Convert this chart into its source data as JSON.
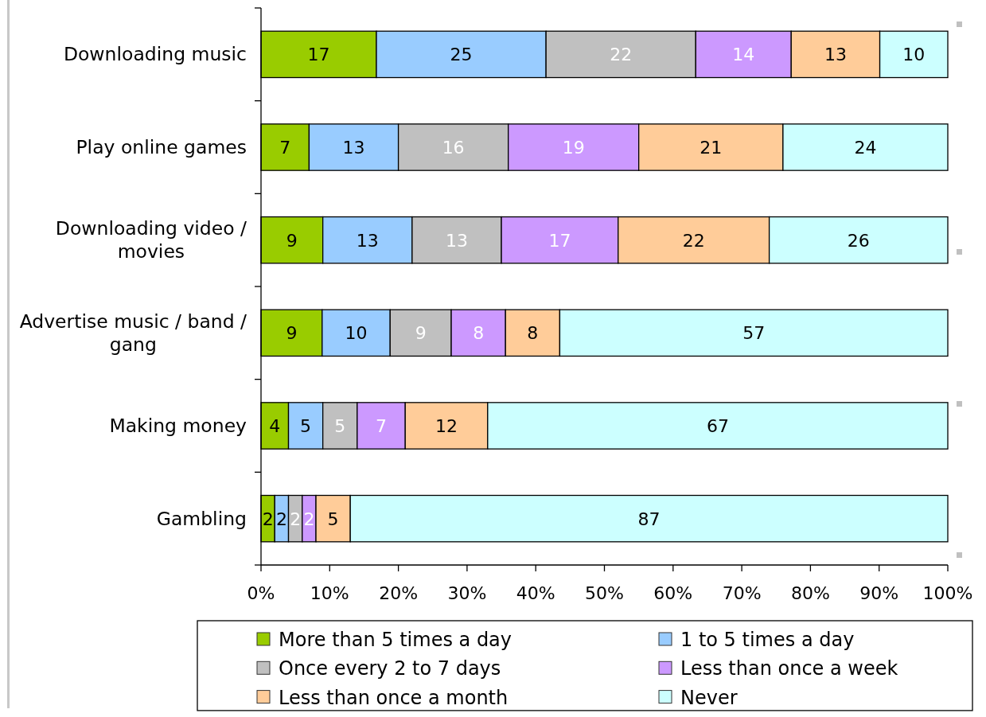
{
  "chart_data": {
    "type": "bar",
    "orientation": "horizontal",
    "stacked": true,
    "categories": [
      "Downloading music",
      "Play online games",
      "Downloading video / movies",
      "Advertise music / band / gang",
      "Making money",
      "Gambling"
    ],
    "series": [
      {
        "name": "More than 5 times a day",
        "color": "#99cc00",
        "values": [
          16.8,
          7,
          9,
          8.9,
          4,
          2
        ],
        "value_labels": [
          "17",
          "7",
          "9",
          "9",
          "4",
          "2"
        ]
      },
      {
        "name": "1 to 5 times a day",
        "color": "#99ccff",
        "values": [
          24.7,
          13,
          13,
          9.9,
          5,
          2
        ],
        "value_labels": [
          "25",
          "13",
          "13",
          "10",
          "5",
          "2"
        ]
      },
      {
        "name": "Once every 2 to 7 days",
        "color": "#c0c0c0",
        "values": [
          21.8,
          16,
          13,
          8.9,
          5,
          2
        ],
        "value_labels": [
          "22",
          "16",
          "13",
          "9",
          "5",
          "2"
        ]
      },
      {
        "name": "Less than once a week",
        "color": "#cc99ff",
        "values": [
          13.9,
          19,
          17,
          7.9,
          7,
          2
        ],
        "value_labels": [
          "14",
          "19",
          "17",
          "8",
          "7",
          "2"
        ]
      },
      {
        "name": "Less than once a month",
        "color": "#ffcc99",
        "values": [
          12.9,
          21,
          22,
          7.9,
          12,
          5
        ],
        "value_labels": [
          "13",
          "21",
          "22",
          "8",
          "12",
          "5"
        ]
      },
      {
        "name": "Never",
        "color": "#ccffff",
        "values": [
          9.9,
          24,
          26,
          56.5,
          67,
          87
        ],
        "value_labels": [
          "10",
          "24",
          "26",
          "57",
          "67",
          "87"
        ]
      }
    ],
    "xlim": [
      0,
      100
    ],
    "xticks": [
      {
        "value": 0,
        "label": "0%"
      },
      {
        "value": 10,
        "label": "10%"
      },
      {
        "value": 20,
        "label": "20%"
      },
      {
        "value": 30,
        "label": "30%"
      },
      {
        "value": 40,
        "label": "40%"
      },
      {
        "value": 50,
        "label": "50%"
      },
      {
        "value": 60,
        "label": "60%"
      },
      {
        "value": 70,
        "label": "70%"
      },
      {
        "value": 80,
        "label": "80%"
      },
      {
        "value": 90,
        "label": "90%"
      },
      {
        "value": 100,
        "label": "100%"
      }
    ],
    "legend": "bottom"
  }
}
